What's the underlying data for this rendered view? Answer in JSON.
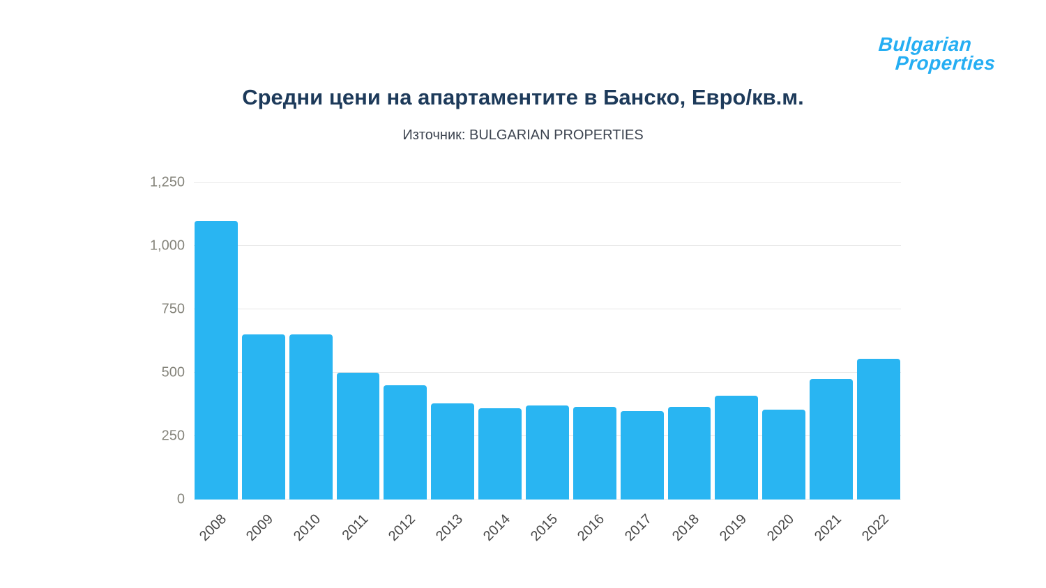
{
  "logo": {
    "line1": "Bulgarian",
    "line2": "Properties",
    "color": "#25aef3"
  },
  "header": {
    "title": "Средни цени на апартаментите в Банско, Евро/кв.м.",
    "subtitle": "Източник: BULGARIAN PROPERTIES"
  },
  "chart_data": {
    "type": "bar",
    "title": "Средни цени на апартаментите в Банско, Евро/кв.м.",
    "subtitle": "Източник: BULGARIAN PROPERTIES",
    "categories": [
      "2008",
      "2009",
      "2010",
      "2011",
      "2012",
      "2013",
      "2014",
      "2015",
      "2016",
      "2017",
      "2018",
      "2019",
      "2020",
      "2021",
      "2022"
    ],
    "values": [
      1100,
      650,
      650,
      500,
      450,
      380,
      360,
      370,
      365,
      350,
      365,
      410,
      355,
      475,
      555
    ],
    "xlabel": "",
    "ylabel": "",
    "ylim": [
      0,
      1250
    ],
    "yticks": [
      0,
      250,
      500,
      750,
      1000,
      1250
    ],
    "ytick_labels": [
      "0",
      "250",
      "500",
      "750",
      "1,000",
      "1,250"
    ],
    "bar_color": "#29b5f2",
    "grid": "horizontal",
    "legend": "none"
  }
}
